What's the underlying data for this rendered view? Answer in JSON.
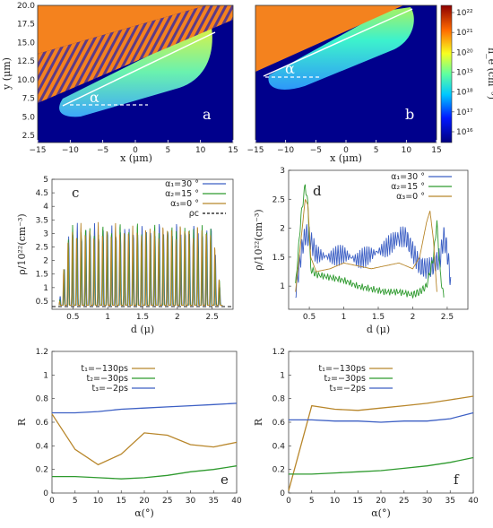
{
  "colors": {
    "blue": "#3c5fc4",
    "green": "#2e9a2e",
    "brown": "#b8862a",
    "map_background": "#00008c",
    "target_orange": "#f4821e"
  },
  "maps": [
    {
      "id": "a",
      "panel_label": "a",
      "xlabel": "x (μm)",
      "ylabel": "y (μm)",
      "xticks": [
        "−15",
        "−10",
        "−5",
        "0",
        "5",
        "10",
        "15"
      ],
      "yticks": [
        "2.5",
        "5.0",
        "7.5",
        "10.0",
        "12.5",
        "15.0",
        "17.5",
        "20.0"
      ],
      "angle_label": "α"
    },
    {
      "id": "b",
      "panel_label": "b",
      "xlabel": "x (μm)",
      "xticks": [
        "−15",
        "−10",
        "−5",
        "0",
        "5",
        "10",
        "15"
      ],
      "angle_label": "α"
    }
  ],
  "colorbar": {
    "label": "n_e (cm⁻³)",
    "ticks": [
      "10²²",
      "10²¹",
      "10²⁰",
      "10¹⁹",
      "10¹⁸",
      "10¹⁷",
      "10¹⁶"
    ]
  },
  "chart_data": [
    {
      "id": "c",
      "type": "line",
      "panel_label": "c",
      "xlabel": "d (μ)",
      "ylabel": "ρ/10²²(cm⁻³)",
      "xlim": [
        0.2,
        2.8
      ],
      "ylim": [
        0.2,
        5.0
      ],
      "xticks": [
        0.5,
        1,
        1.5,
        2,
        2.5
      ],
      "yticks": [
        0.5,
        1,
        1.5,
        2,
        2.5,
        3,
        3.5,
        4,
        4.5,
        5
      ],
      "legend_position": "top-right",
      "series": [
        {
          "name": "α₁=30 °",
          "color": "blue",
          "style": "solid"
        },
        {
          "name": "α₂=15 °",
          "color": "green",
          "style": "solid"
        },
        {
          "name": "α₃=0 °",
          "color": "brown",
          "style": "solid"
        },
        {
          "name": "ρc",
          "color": "black",
          "style": "dashed",
          "value": 0.3
        }
      ],
      "profile": {
        "start": 0.3,
        "end": 2.65,
        "period": 0.062,
        "peak": 3.1,
        "floor": 0.35
      }
    },
    {
      "id": "d",
      "type": "line",
      "panel_label": "d",
      "xlabel": "d (μ)",
      "ylabel": "ρ/10²²(cm⁻³)",
      "xlim": [
        0.2,
        2.8
      ],
      "ylim": [
        0.6,
        3.0
      ],
      "xticks": [
        0.5,
        1,
        1.5,
        2,
        2.5
      ],
      "yticks": [
        1,
        1.5,
        2,
        2.5,
        3
      ],
      "legend_position": "top-right",
      "series": [
        {
          "name": "α₁=30 °",
          "color": "blue",
          "x": [
            0.3,
            0.4,
            0.45,
            0.5,
            0.6,
            0.8,
            1.0,
            1.2,
            1.4,
            1.6,
            1.8,
            1.9,
            2.0,
            2.1,
            2.2,
            2.3,
            2.4,
            2.45,
            2.5,
            2.55
          ],
          "y": [
            0.9,
            1.7,
            1.9,
            1.85,
            1.55,
            1.5,
            1.55,
            1.45,
            1.55,
            1.65,
            1.85,
            1.85,
            1.6,
            1.35,
            1.3,
            1.35,
            1.5,
            1.85,
            1.6,
            1.1
          ]
        },
        {
          "name": "α₂=15 °",
          "color": "green",
          "x": [
            0.3,
            0.38,
            0.44,
            0.48,
            0.52,
            0.6,
            0.8,
            1.0,
            1.2,
            1.4,
            1.6,
            1.8,
            2.0,
            2.1,
            2.2,
            2.3,
            2.35,
            2.4,
            2.45
          ],
          "y": [
            1.0,
            2.2,
            2.75,
            2.4,
            1.3,
            1.2,
            1.15,
            1.1,
            1.0,
            0.95,
            0.9,
            0.9,
            0.85,
            0.9,
            1.0,
            1.5,
            2.1,
            1.2,
            0.8
          ]
        },
        {
          "name": "α₃=0 °",
          "color": "brown",
          "x": [
            0.3,
            0.38,
            0.44,
            0.48,
            0.52,
            0.6,
            0.8,
            1.0,
            1.2,
            1.4,
            1.6,
            1.8,
            2.0,
            2.1,
            2.2,
            2.25,
            2.3,
            2.35
          ],
          "y": [
            0.9,
            1.8,
            2.5,
            2.4,
            1.5,
            1.25,
            1.3,
            1.4,
            1.35,
            1.3,
            1.35,
            1.4,
            1.3,
            1.5,
            2.1,
            2.3,
            1.8,
            0.9
          ]
        }
      ]
    },
    {
      "id": "e",
      "type": "line",
      "panel_label": "e",
      "xlabel": "α(°)",
      "ylabel": "R",
      "xlim": [
        0,
        40
      ],
      "ylim": [
        0,
        1.2
      ],
      "xticks": [
        0,
        5,
        10,
        15,
        20,
        25,
        30,
        35,
        40
      ],
      "yticks": [
        0,
        0.2,
        0.4,
        0.6,
        0.8,
        1,
        1.2
      ],
      "legend_position": "top-right",
      "x": [
        0,
        5,
        10,
        15,
        20,
        25,
        30,
        35,
        40
      ],
      "series": [
        {
          "name": "t₁=−130ps",
          "color": "brown",
          "values": [
            0.67,
            0.37,
            0.24,
            0.33,
            0.51,
            0.49,
            0.41,
            0.39,
            0.43
          ]
        },
        {
          "name": "t₂=−30ps",
          "color": "green",
          "values": [
            0.14,
            0.14,
            0.13,
            0.12,
            0.13,
            0.15,
            0.18,
            0.2,
            0.23
          ]
        },
        {
          "name": "t₃=−2ps",
          "color": "blue",
          "values": [
            0.68,
            0.68,
            0.69,
            0.71,
            0.72,
            0.73,
            0.74,
            0.75,
            0.76
          ]
        }
      ]
    },
    {
      "id": "f",
      "type": "line",
      "panel_label": "f",
      "xlabel": "α(°)",
      "ylabel": "R",
      "xlim": [
        0,
        40
      ],
      "ylim": [
        0,
        1.2
      ],
      "xticks": [
        0,
        5,
        10,
        15,
        20,
        25,
        30,
        35,
        40
      ],
      "yticks": [
        0,
        0.2,
        0.4,
        0.6,
        0.8,
        1,
        1.2
      ],
      "legend_position": "top-right",
      "x": [
        0,
        5,
        10,
        15,
        20,
        25,
        30,
        35,
        40
      ],
      "series": [
        {
          "name": "t₁=−130ps",
          "color": "brown",
          "values": [
            0.02,
            0.74,
            0.71,
            0.7,
            0.72,
            0.74,
            0.76,
            0.79,
            0.82
          ]
        },
        {
          "name": "t₂=−30ps",
          "color": "green",
          "values": [
            0.16,
            0.16,
            0.17,
            0.18,
            0.19,
            0.21,
            0.23,
            0.26,
            0.3
          ]
        },
        {
          "name": "t₃=−2ps",
          "color": "blue",
          "values": [
            0.62,
            0.62,
            0.61,
            0.61,
            0.6,
            0.61,
            0.61,
            0.63,
            0.68
          ]
        }
      ]
    }
  ]
}
